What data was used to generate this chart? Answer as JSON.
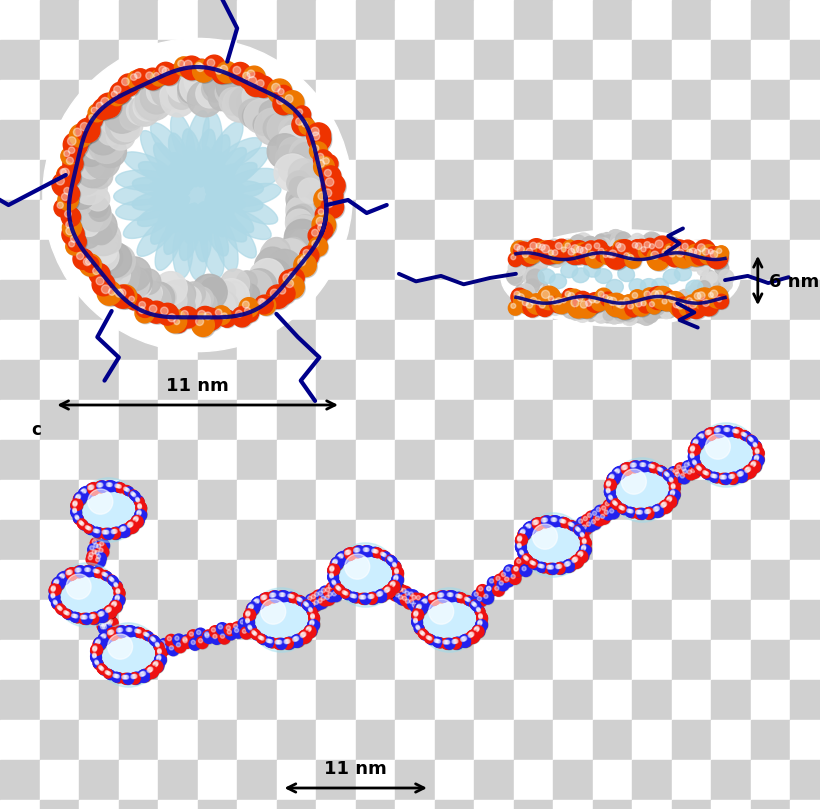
{
  "background_checker_color1": "#ffffff",
  "background_checker_color2": "#d0d0d0",
  "checker_size": 40,
  "annotation_11nm_top_text": "11 nm",
  "annotation_11nm_bottom_text": "11 nm",
  "annotation_6nm_text": "6 nm",
  "histone_color": "#add8e6",
  "dna_red": "#ee1111",
  "dna_blue": "#2222ee",
  "nucleosome_core_gray": "#c0c0c0",
  "phosphate_red": "#ee3300",
  "phosphate_orange": "#ee7700",
  "label_color": "#000000",
  "label_fontsize": 13,
  "label_fontweight": "bold",
  "cyan_core": "#99ddee",
  "cyan_core_light": "#cceeff"
}
